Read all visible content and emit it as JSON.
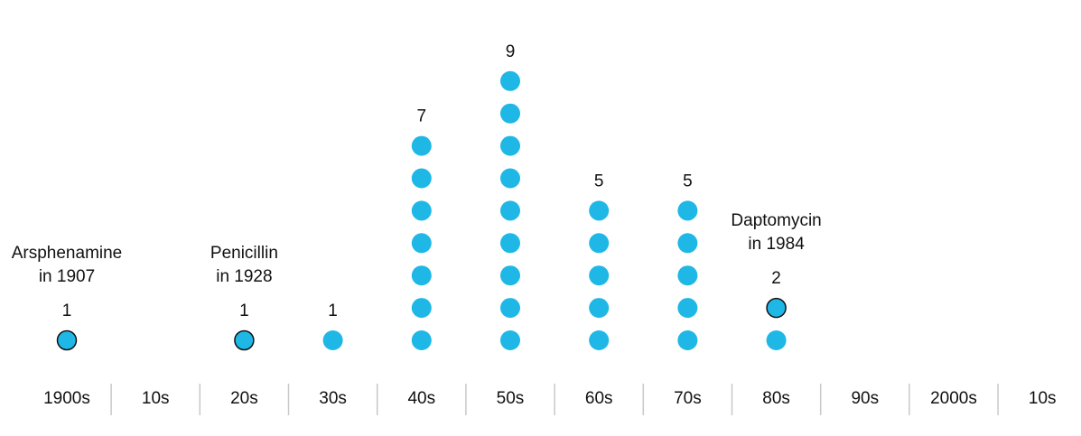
{
  "chart_data": {
    "type": "dot",
    "categories": [
      "1900s",
      "10s",
      "20s",
      "30s",
      "40s",
      "50s",
      "60s",
      "70s",
      "80s",
      "90s",
      "2000s",
      "10s"
    ],
    "values": [
      1,
      0,
      1,
      1,
      7,
      9,
      5,
      5,
      2,
      0,
      0,
      0
    ],
    "annotations": [
      [
        "Arsphenamine",
        "in 1907"
      ],
      null,
      [
        "Penicillin",
        "in 1928"
      ],
      null,
      null,
      null,
      null,
      null,
      [
        "Daptomycin",
        "in 1984"
      ],
      null,
      null,
      null
    ],
    "color": "#1fb8e6"
  }
}
